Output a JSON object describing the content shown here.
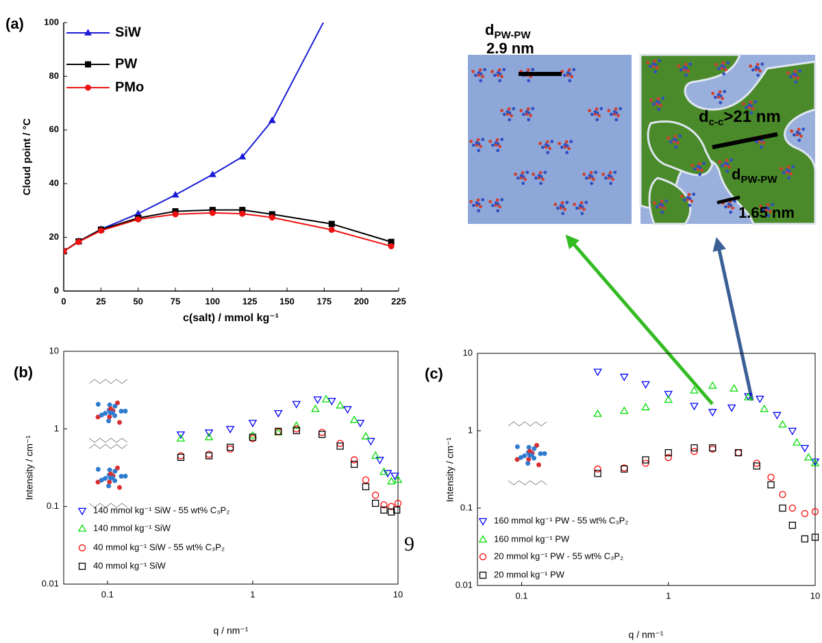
{
  "chart_data": [
    {
      "type": "line",
      "panel_label": "(a)",
      "x_label": "c(salt) / mmol kg⁻¹",
      "y_label": "Cloud point / °C",
      "x": [
        0,
        10,
        25,
        50,
        75,
        100,
        120,
        140,
        180,
        220
      ],
      "xlim": [
        0,
        225
      ],
      "xticks": [
        0,
        25,
        50,
        75,
        100,
        125,
        150,
        175,
        200,
        225
      ],
      "ylim": [
        0,
        100
      ],
      "yticks": [
        0,
        20,
        40,
        60,
        80,
        100
      ],
      "log_scale": false,
      "frame": false,
      "filled_markers": true,
      "series": [
        {
          "name": "SiW",
          "color": "#1a1ad6",
          "marker": "triangle-up",
          "values": [
            14.8,
            18.5,
            23,
            28.8,
            35.8,
            43.4,
            50,
            63.5,
            106,
            null
          ]
        },
        {
          "name": "PW",
          "color": "#000000",
          "marker": "square",
          "values": [
            14.8,
            18.5,
            22.9,
            27.2,
            29.7,
            30.2,
            30.2,
            28.6,
            25,
            18.3
          ]
        },
        {
          "name": "PMo",
          "color": "#ee1111",
          "marker": "circle",
          "values": [
            14.8,
            18.3,
            22.5,
            26.7,
            28.6,
            29.1,
            28.8,
            27.4,
            22.8,
            16.7
          ]
        }
      ]
    },
    {
      "type": "scatter",
      "panel_label": "(b)",
      "x_label": "q / nm⁻¹",
      "y_label": "Intensity / cm⁻¹",
      "xlim": [
        0.05,
        10
      ],
      "xticks": [
        0.1,
        1,
        10
      ],
      "ylim": [
        0.01,
        10
      ],
      "yticks": [
        0.01,
        0.1,
        1,
        10
      ],
      "log_scale": true,
      "frame": true,
      "filled_markers": false,
      "series": [
        {
          "name": "140 mmol kg⁻¹ SiW - 55 wt% C₃P₂",
          "color": "#0000ff",
          "marker": "triangle-down",
          "x": [
            0.32,
            0.5,
            0.7,
            1,
            1.5,
            2,
            2.8,
            3.5,
            4.5,
            5.5,
            6.5,
            7.5,
            8.5,
            9.5
          ],
          "values": [
            0.85,
            0.9,
            1.0,
            1.2,
            1.6,
            2.1,
            2.4,
            2.3,
            1.8,
            1.2,
            0.7,
            0.4,
            0.27,
            0.25
          ]
        },
        {
          "name": "140 mmol kg⁻¹ SiW",
          "color": "#00dd00",
          "marker": "triangle-up",
          "x": [
            0.32,
            0.5,
            1,
            1.5,
            2,
            2.7,
            3.2,
            4,
            5,
            6,
            7,
            8,
            9,
            10
          ],
          "values": [
            0.75,
            0.78,
            0.82,
            0.9,
            1.1,
            1.8,
            2.4,
            2.0,
            1.3,
            0.8,
            0.45,
            0.28,
            0.21,
            0.22
          ]
        },
        {
          "name": "40 mmol kg⁻¹ SiW - 55 wt% C₃P₂",
          "color": "#ff0000",
          "marker": "circle",
          "x": [
            0.32,
            0.5,
            0.7,
            1,
            1.5,
            2,
            3,
            4,
            5,
            6,
            7,
            8,
            9,
            10
          ],
          "values": [
            0.45,
            0.47,
            0.55,
            0.75,
            0.92,
            1.0,
            0.9,
            0.65,
            0.4,
            0.22,
            0.14,
            0.105,
            0.1,
            0.11
          ]
        },
        {
          "name": "40 mmol kg⁻¹ SiW",
          "color": "#000000",
          "marker": "square",
          "x": [
            0.32,
            0.5,
            0.7,
            1,
            1.5,
            2,
            3,
            4,
            5,
            6,
            7,
            8,
            9,
            9.8
          ],
          "values": [
            0.43,
            0.45,
            0.58,
            0.78,
            0.93,
            0.95,
            0.85,
            0.6,
            0.35,
            0.18,
            0.11,
            0.09,
            0.085,
            0.09
          ]
        }
      ]
    },
    {
      "type": "scatter",
      "panel_label": "(c)",
      "x_label": "q / nm⁻¹",
      "y_label": "Intensity / cm⁻¹",
      "xlim": [
        0.05,
        10
      ],
      "xticks": [
        0.1,
        1,
        10
      ],
      "ylim": [
        0.01,
        10
      ],
      "yticks": [
        0.01,
        0.1,
        1,
        10
      ],
      "log_scale": true,
      "frame": true,
      "filled_markers": false,
      "series": [
        {
          "name": "160  mmol kg⁻¹ PW - 55 wt% C₃P₂",
          "color": "#0000ff",
          "marker": "triangle-down",
          "x": [
            0.33,
            0.5,
            0.7,
            1,
            1.5,
            2,
            2.7,
            3.5,
            4.2,
            5.5,
            7,
            8.5,
            10
          ],
          "values": [
            5.8,
            5,
            4,
            3,
            2.1,
            1.75,
            2.0,
            2.8,
            2.6,
            1.6,
            1.0,
            0.6,
            0.4
          ]
        },
        {
          "name": "160  mmol kg⁻¹ PW",
          "color": "#00dd00",
          "marker": "triangle-up",
          "x": [
            0.33,
            0.5,
            0.7,
            1,
            1.5,
            2,
            2.8,
            3.5,
            4.5,
            6,
            7.5,
            9,
            10
          ],
          "values": [
            1.65,
            1.8,
            2.0,
            2.5,
            3.3,
            3.8,
            3.5,
            2.7,
            1.9,
            1.2,
            0.7,
            0.45,
            0.38
          ]
        },
        {
          "name": "20  mmol kg⁻¹ PW - 55 wt% C₃P₂",
          "color": "#ff0000",
          "marker": "circle",
          "x": [
            0.33,
            0.5,
            0.7,
            1,
            1.5,
            2,
            3,
            4,
            5,
            6,
            7,
            8.5,
            10
          ],
          "values": [
            0.32,
            0.33,
            0.38,
            0.45,
            0.54,
            0.58,
            0.52,
            0.38,
            0.25,
            0.15,
            0.1,
            0.085,
            0.09
          ]
        },
        {
          "name": "20  mmol kg⁻¹ PW",
          "color": "#000000",
          "marker": "square",
          "x": [
            0.33,
            0.5,
            0.7,
            1,
            1.5,
            2,
            3,
            4,
            5,
            6,
            7,
            8.5,
            10
          ],
          "values": [
            0.28,
            0.32,
            0.42,
            0.52,
            0.6,
            0.6,
            0.52,
            0.35,
            0.2,
            0.1,
            0.06,
            0.04,
            0.042
          ]
        }
      ]
    }
  ],
  "illustrations": {
    "left": {
      "symbol": "d",
      "subscript": "PW-PW",
      "distance": "2.9 nm"
    },
    "right_cc": {
      "symbol": "d",
      "subscript": "c-c",
      "distance": ">21 nm"
    },
    "right_pw": {
      "symbol": "d",
      "subscript": "PW-PW",
      "distance": "1.65 nm"
    }
  },
  "page_number": "9"
}
